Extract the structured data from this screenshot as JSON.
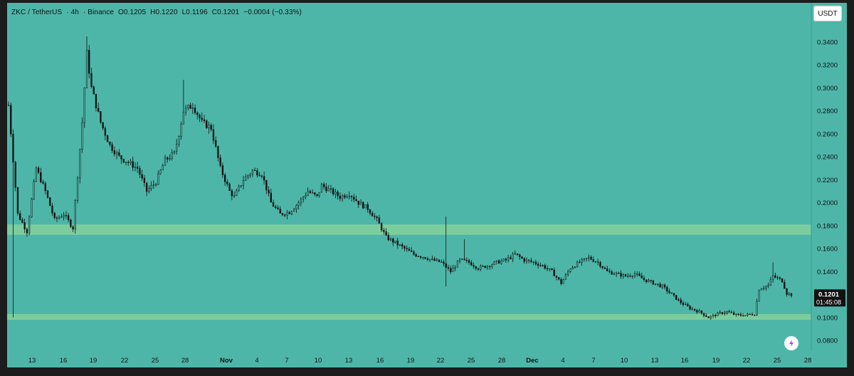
{
  "header": {
    "symbol": "ZKC / TetherUS",
    "interval": "4h",
    "exchange": "Binance",
    "open": "O0.1205",
    "high": "H0.1220",
    "low": "L0.1196",
    "close": "C0.1201",
    "change": "−0.0004 (−0.33%)"
  },
  "currency_button": "USDT",
  "colors": {
    "background": "#4db6a9",
    "zone": "#7ccd9e",
    "candle": "#111111"
  },
  "chart_data": {
    "type": "candlestick",
    "title": "ZKC / TetherUS · 4h · Binance",
    "ylim": [
      0.07,
      0.36
    ],
    "y_ticks": [
      "0.3400",
      "0.3200",
      "0.3000",
      "0.2800",
      "0.2600",
      "0.2400",
      "0.2200",
      "0.2000",
      "0.1800",
      "0.1600",
      "0.1400",
      "0.1200",
      "0.1000",
      "0.0800"
    ],
    "x_ticks": [
      "13",
      "16",
      "19",
      "22",
      "25",
      "28",
      "Nov",
      "4",
      "7",
      "10",
      "13",
      "16",
      "19",
      "22",
      "25",
      "28",
      "Dec",
      "4",
      "7",
      "10",
      "13",
      "16",
      "19",
      "22",
      "25",
      "28"
    ],
    "bold_x_ticks": [
      "Nov",
      "Dec"
    ],
    "zones": [
      {
        "low": 0.172,
        "high": 0.181
      },
      {
        "low": 0.098,
        "high": 0.103
      }
    ],
    "price_path": [
      [
        0,
        0.285
      ],
      [
        2,
        0.19
      ],
      [
        4,
        0.175
      ],
      [
        6,
        0.23
      ],
      [
        8,
        0.21
      ],
      [
        10,
        0.185
      ],
      [
        12,
        0.19
      ],
      [
        14,
        0.178
      ],
      [
        16,
        0.27
      ],
      [
        17,
        0.33
      ],
      [
        18,
        0.3
      ],
      [
        20,
        0.27
      ],
      [
        22,
        0.25
      ],
      [
        24,
        0.24
      ],
      [
        26,
        0.235
      ],
      [
        28,
        0.23
      ],
      [
        30,
        0.21
      ],
      [
        32,
        0.218
      ],
      [
        34,
        0.237
      ],
      [
        36,
        0.243
      ],
      [
        37,
        0.26
      ],
      [
        38,
        0.28
      ],
      [
        40,
        0.285
      ],
      [
        42,
        0.27
      ],
      [
        44,
        0.265
      ],
      [
        46,
        0.23
      ],
      [
        48,
        0.21
      ],
      [
        49,
        0.205
      ],
      [
        51,
        0.22
      ],
      [
        53,
        0.228
      ],
      [
        55,
        0.225
      ],
      [
        57,
        0.2
      ],
      [
        59,
        0.19
      ],
      [
        61,
        0.192
      ],
      [
        63,
        0.2
      ],
      [
        65,
        0.21
      ],
      [
        67,
        0.205
      ],
      [
        68,
        0.215
      ],
      [
        70,
        0.21
      ],
      [
        72,
        0.205
      ],
      [
        74,
        0.208
      ],
      [
        76,
        0.2
      ],
      [
        78,
        0.195
      ],
      [
        80,
        0.185
      ],
      [
        82,
        0.17
      ],
      [
        84,
        0.165
      ],
      [
        86,
        0.16
      ],
      [
        88,
        0.155
      ],
      [
        90,
        0.153
      ],
      [
        92,
        0.15
      ],
      [
        94,
        0.148
      ],
      [
        96,
        0.14
      ],
      [
        98,
        0.15
      ],
      [
        100,
        0.148
      ],
      [
        102,
        0.143
      ],
      [
        104,
        0.145
      ],
      [
        106,
        0.148
      ],
      [
        108,
        0.15
      ],
      [
        110,
        0.155
      ],
      [
        112,
        0.15
      ],
      [
        114,
        0.148
      ],
      [
        116,
        0.145
      ],
      [
        118,
        0.14
      ],
      [
        120,
        0.13
      ],
      [
        122,
        0.143
      ],
      [
        124,
        0.148
      ],
      [
        126,
        0.152
      ],
      [
        128,
        0.148
      ],
      [
        130,
        0.14
      ],
      [
        132,
        0.138
      ],
      [
        134,
        0.136
      ],
      [
        136,
        0.138
      ],
      [
        138,
        0.133
      ],
      [
        140,
        0.13
      ],
      [
        142,
        0.127
      ],
      [
        144,
        0.12
      ],
      [
        146,
        0.113
      ],
      [
        148,
        0.108
      ],
      [
        150,
        0.105
      ],
      [
        152,
        0.1
      ],
      [
        154,
        0.103
      ],
      [
        156,
        0.105
      ],
      [
        158,
        0.102
      ],
      [
        160,
        0.102
      ],
      [
        162,
        0.103
      ],
      [
        163,
        0.125
      ],
      [
        165,
        0.128
      ],
      [
        166,
        0.136
      ],
      [
        168,
        0.132
      ],
      [
        169,
        0.121
      ],
      [
        170,
        0.12
      ]
    ],
    "spikes": [
      {
        "x": 1,
        "low": 0.1
      },
      {
        "x": 17,
        "high": 0.345
      },
      {
        "x": 38,
        "high": 0.307
      },
      {
        "x": 95,
        "high": 0.188,
        "low": 0.127
      },
      {
        "x": 99,
        "high": 0.168
      },
      {
        "x": 166,
        "high": 0.148
      }
    ],
    "last_price": "0.1201",
    "countdown": "01:45:08"
  }
}
